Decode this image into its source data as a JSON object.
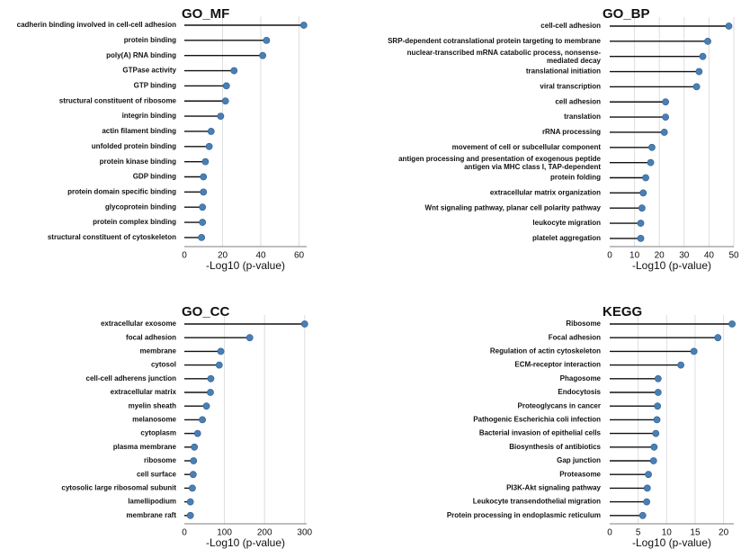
{
  "chart_data": [
    {
      "type": "lollipop",
      "title": "GO_MF",
      "xlabel": "-Log10 (p-value)",
      "xlim": [
        0,
        64
      ],
      "xticks": [
        0,
        20,
        40,
        60
      ],
      "grid": true,
      "categories": [
        "cadherin binding involved in cell-cell adhesion",
        "protein binding",
        "poly(A) RNA binding",
        "GTPase activity",
        "GTP binding",
        "structural constituent of ribosome",
        "integrin binding",
        "actin filament binding",
        "unfolded protein binding",
        "protein kinase binding",
        "GDP binding",
        "protein domain specific binding",
        "glycoprotein binding",
        "protein complex binding",
        "structural constituent of cytoskeleton"
      ],
      "values": [
        62.5,
        43,
        41,
        26,
        22,
        21.5,
        19,
        14,
        13,
        11,
        10,
        10,
        9.5,
        9.5,
        9
      ]
    },
    {
      "type": "lollipop",
      "title": "GO_BP",
      "xlabel": "-Log10 (p-value)",
      "xlim": [
        0,
        50
      ],
      "xticks": [
        0,
        10,
        20,
        30,
        40,
        50
      ],
      "grid": true,
      "categories": [
        "cell-cell adhesion",
        "SRP-dependent cotranslational protein targeting to membrane",
        [
          "nuclear-transcribed mRNA catabolic process, nonsense-",
          "mediated decay"
        ],
        "translational initiation",
        "viral transcription",
        "cell adhesion",
        "translation",
        "rRNA processing",
        "movement of cell or subcellular component",
        [
          "antigen processing and presentation of exogenous peptide",
          "antigen via MHC class I, TAP-dependent"
        ],
        "protein folding",
        "extracellular matrix organization",
        "Wnt signaling pathway, planar cell polarity pathway",
        "leukocyte migration",
        "platelet aggregation"
      ],
      "values": [
        48,
        39.5,
        37.5,
        36,
        35,
        22.5,
        22.5,
        22,
        17,
        16.5,
        14.5,
        13.5,
        13,
        12.5,
        12.5
      ]
    },
    {
      "type": "lollipop",
      "title": "GO_CC",
      "xlabel": "-Log10 (p-value)",
      "xlim": [
        0,
        305
      ],
      "xticks": [
        0,
        100,
        200,
        300
      ],
      "grid": true,
      "categories": [
        "extracellular exosome",
        "focal adhesion",
        "membrane",
        "cytosol",
        "cell-cell adherens junction",
        "extracellular matrix",
        "myelin sheath",
        "melanosome",
        "cytoplasm",
        "plasma membrane",
        "ribosome",
        "cell surface",
        "cytosolic large ribosomal subunit",
        "lamellipodium",
        "membrane raft"
      ],
      "values": [
        300,
        163,
        91,
        87,
        66,
        65,
        55,
        45,
        33,
        25,
        23,
        22,
        20,
        15,
        15
      ]
    },
    {
      "type": "lollipop",
      "title": "KEGG",
      "xlabel": "-Log10 (p-value)",
      "xlim": [
        0,
        21.8
      ],
      "xticks": [
        0,
        5,
        10,
        15,
        20
      ],
      "grid": true,
      "categories": [
        "Ribosome",
        "Focal adhesion",
        "Regulation of actin cytoskeleton",
        "ECM-receptor interaction",
        "Phagosome",
        "Endocytosis",
        "Proteoglycans in cancer",
        "Pathogenic Escherichia coli infection",
        "Bacterial invasion of epithelial cells",
        "Biosynthesis of antibiotics",
        "Gap junction",
        "Proteasome",
        "PI3K-Akt signaling pathway",
        "Leukocyte transendothelial migration",
        "Protein processing in endoplasmic reticulum"
      ],
      "values": [
        21.5,
        19,
        14.8,
        12.5,
        8.5,
        8.5,
        8.4,
        8.3,
        8.1,
        7.8,
        7.7,
        6.8,
        6.6,
        6.5,
        5.8
      ]
    }
  ],
  "colors": {
    "dot": "#4a7fb5",
    "dot_stroke": "#2e5f8f",
    "stem": "#111111",
    "grid": "#dedede",
    "text": "#111111"
  }
}
